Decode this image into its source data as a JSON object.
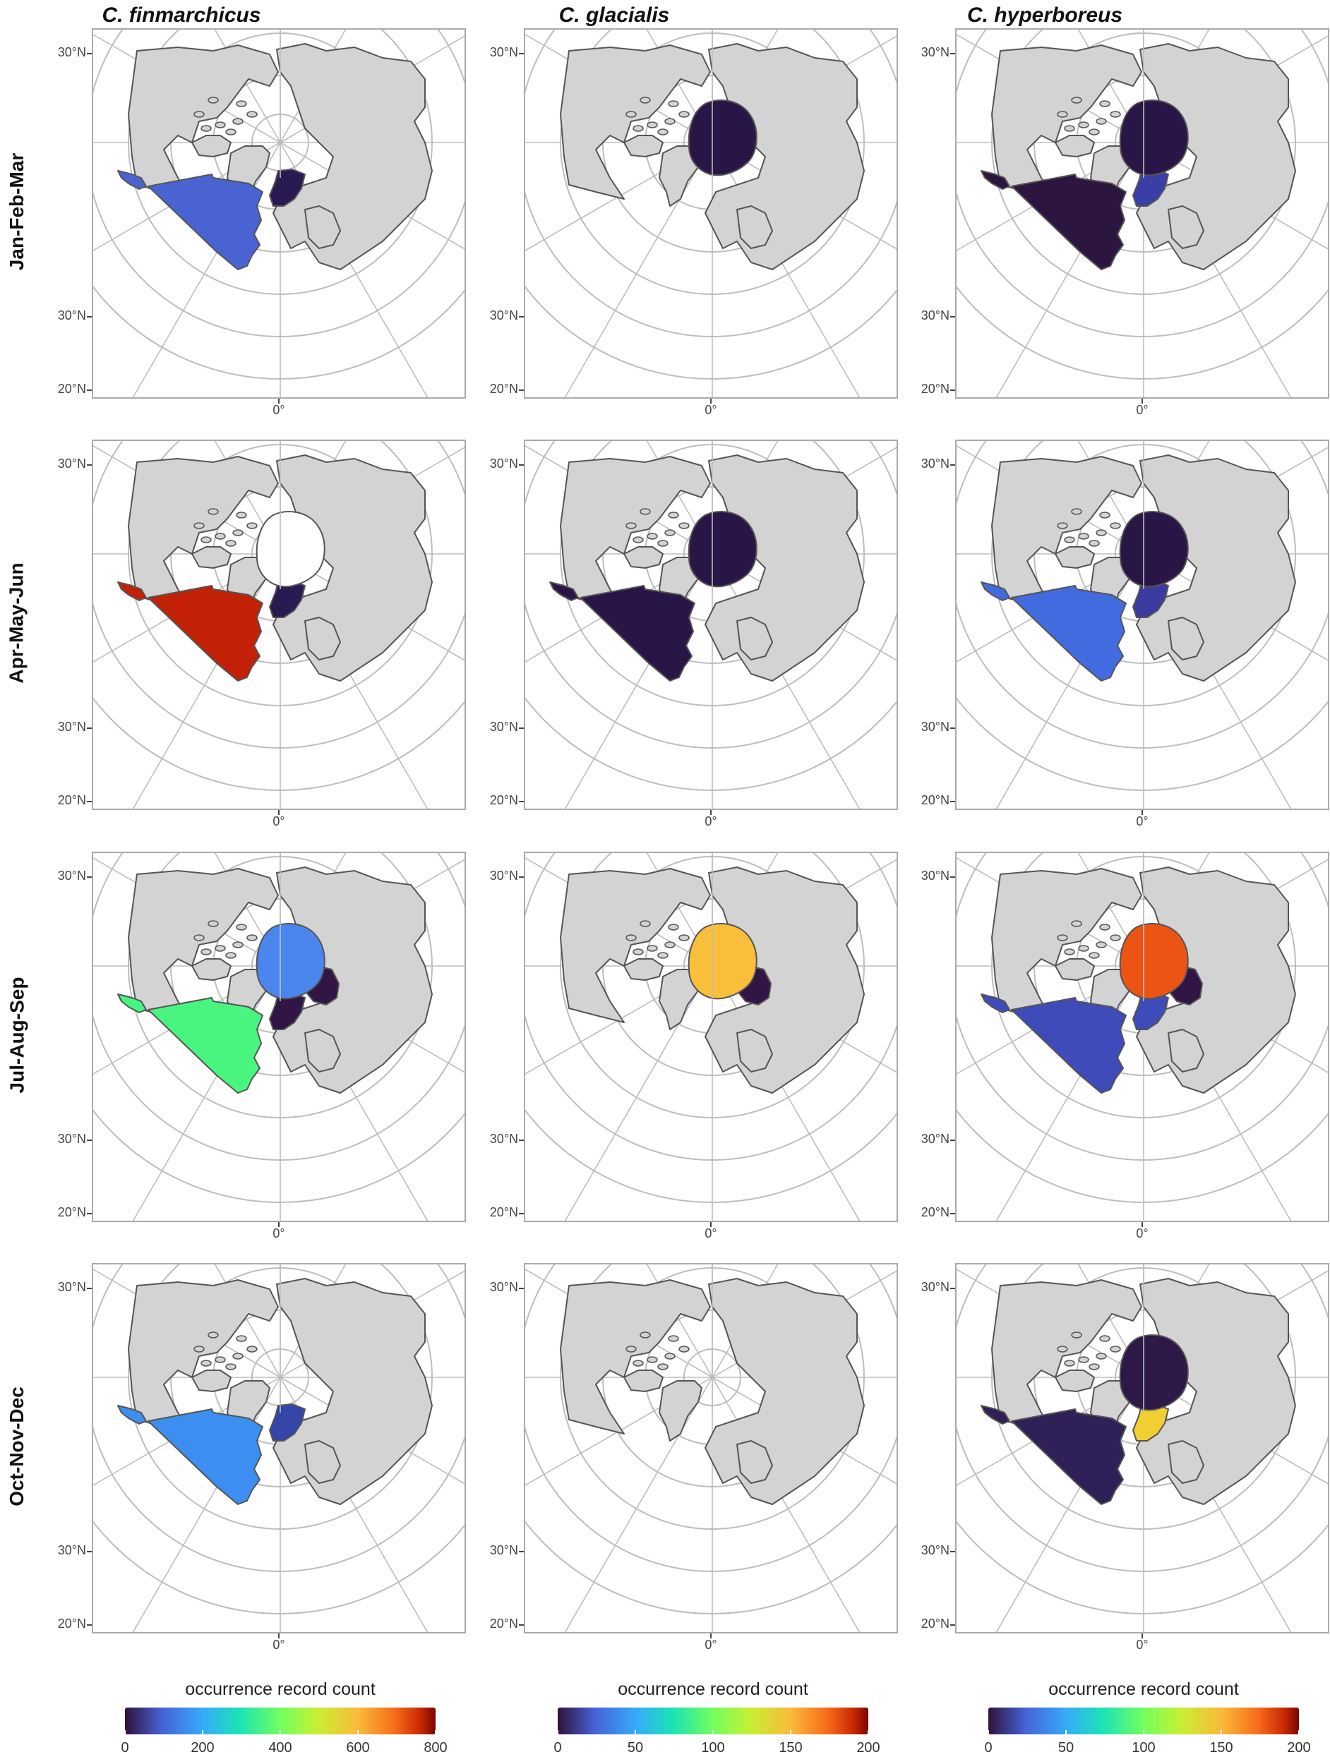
{
  "columns": [
    "C. finmarchicus",
    "C. glacialis",
    "C. hyperboreus"
  ],
  "rows": [
    "Jan-Feb-Mar",
    "Apr-May-Jun",
    "Jul-Aug-Sep",
    "Oct-Nov-Dec"
  ],
  "axis_labels": {
    "lat_top": "30°N",
    "lat_mid": "30°N",
    "lat_bottom": "20°N",
    "lon": "0°"
  },
  "colors": {
    "land": "#d3d3d3",
    "coast": "#555555",
    "grid": "#bdbdbd",
    "ocean": "#ffffff"
  },
  "legends": [
    {
      "title": "occurrence record count",
      "ticks": [
        "0",
        "200",
        "400",
        "600",
        "800"
      ],
      "max": 800
    },
    {
      "title": "occurrence record count",
      "ticks": [
        "0",
        "50",
        "100",
        "150",
        "200"
      ],
      "max": 200
    },
    {
      "title": "occurrence record count",
      "ticks": [
        "0",
        "50",
        "100",
        "150",
        "200"
      ],
      "max": 200
    }
  ],
  "region_fills": [
    [
      {
        "arctic": null,
        "atlantic": "#4a63d3",
        "barents": null,
        "nordic": "#2a1a52",
        "labrador": "#4a63d3"
      },
      {
        "arctic": "#ffffff",
        "atlantic": "#c22106",
        "barents": null,
        "nordic": "#2a1a52",
        "labrador": "#c22106"
      },
      {
        "arctic": "#4a86ee",
        "atlantic": "#48f67f",
        "barents": "#301545",
        "nordic": "#301545",
        "labrador": "#48f67f"
      },
      {
        "arctic": null,
        "atlantic": "#3c8ff0",
        "barents": null,
        "nordic": "#3545a8",
        "labrador": "#3c8ff0"
      }
    ],
    [
      {
        "arctic": "#2a1646",
        "atlantic": null,
        "barents": null,
        "nordic": null,
        "labrador": null
      },
      {
        "arctic": "#2a1646",
        "atlantic": "#2a1646",
        "barents": null,
        "nordic": null,
        "labrador": "#2a1646"
      },
      {
        "arctic": "#f9bf3b",
        "atlantic": null,
        "barents": "#301545",
        "nordic": null,
        "labrador": null
      },
      {
        "arctic": null,
        "atlantic": null,
        "barents": null,
        "nordic": null,
        "labrador": null
      }
    ],
    [
      {
        "arctic": "#2a1646",
        "atlantic": "#2c1640",
        "barents": null,
        "nordic": "#3a3fa8",
        "labrador": "#2c1640"
      },
      {
        "arctic": "#2a1646",
        "atlantic": "#426be0",
        "barents": null,
        "nordic": "#3b3aa0",
        "labrador": "#426be0"
      },
      {
        "arctic": "#ec5414",
        "atlantic": "#3e4bb8",
        "barents": "#301545",
        "nordic": "#3e4bb8",
        "labrador": "#3e4bb8"
      },
      {
        "arctic": "#2d1848",
        "atlantic": "#302058",
        "barents": null,
        "nordic": "#f1cf33",
        "labrador": "#302058"
      }
    ]
  ]
}
